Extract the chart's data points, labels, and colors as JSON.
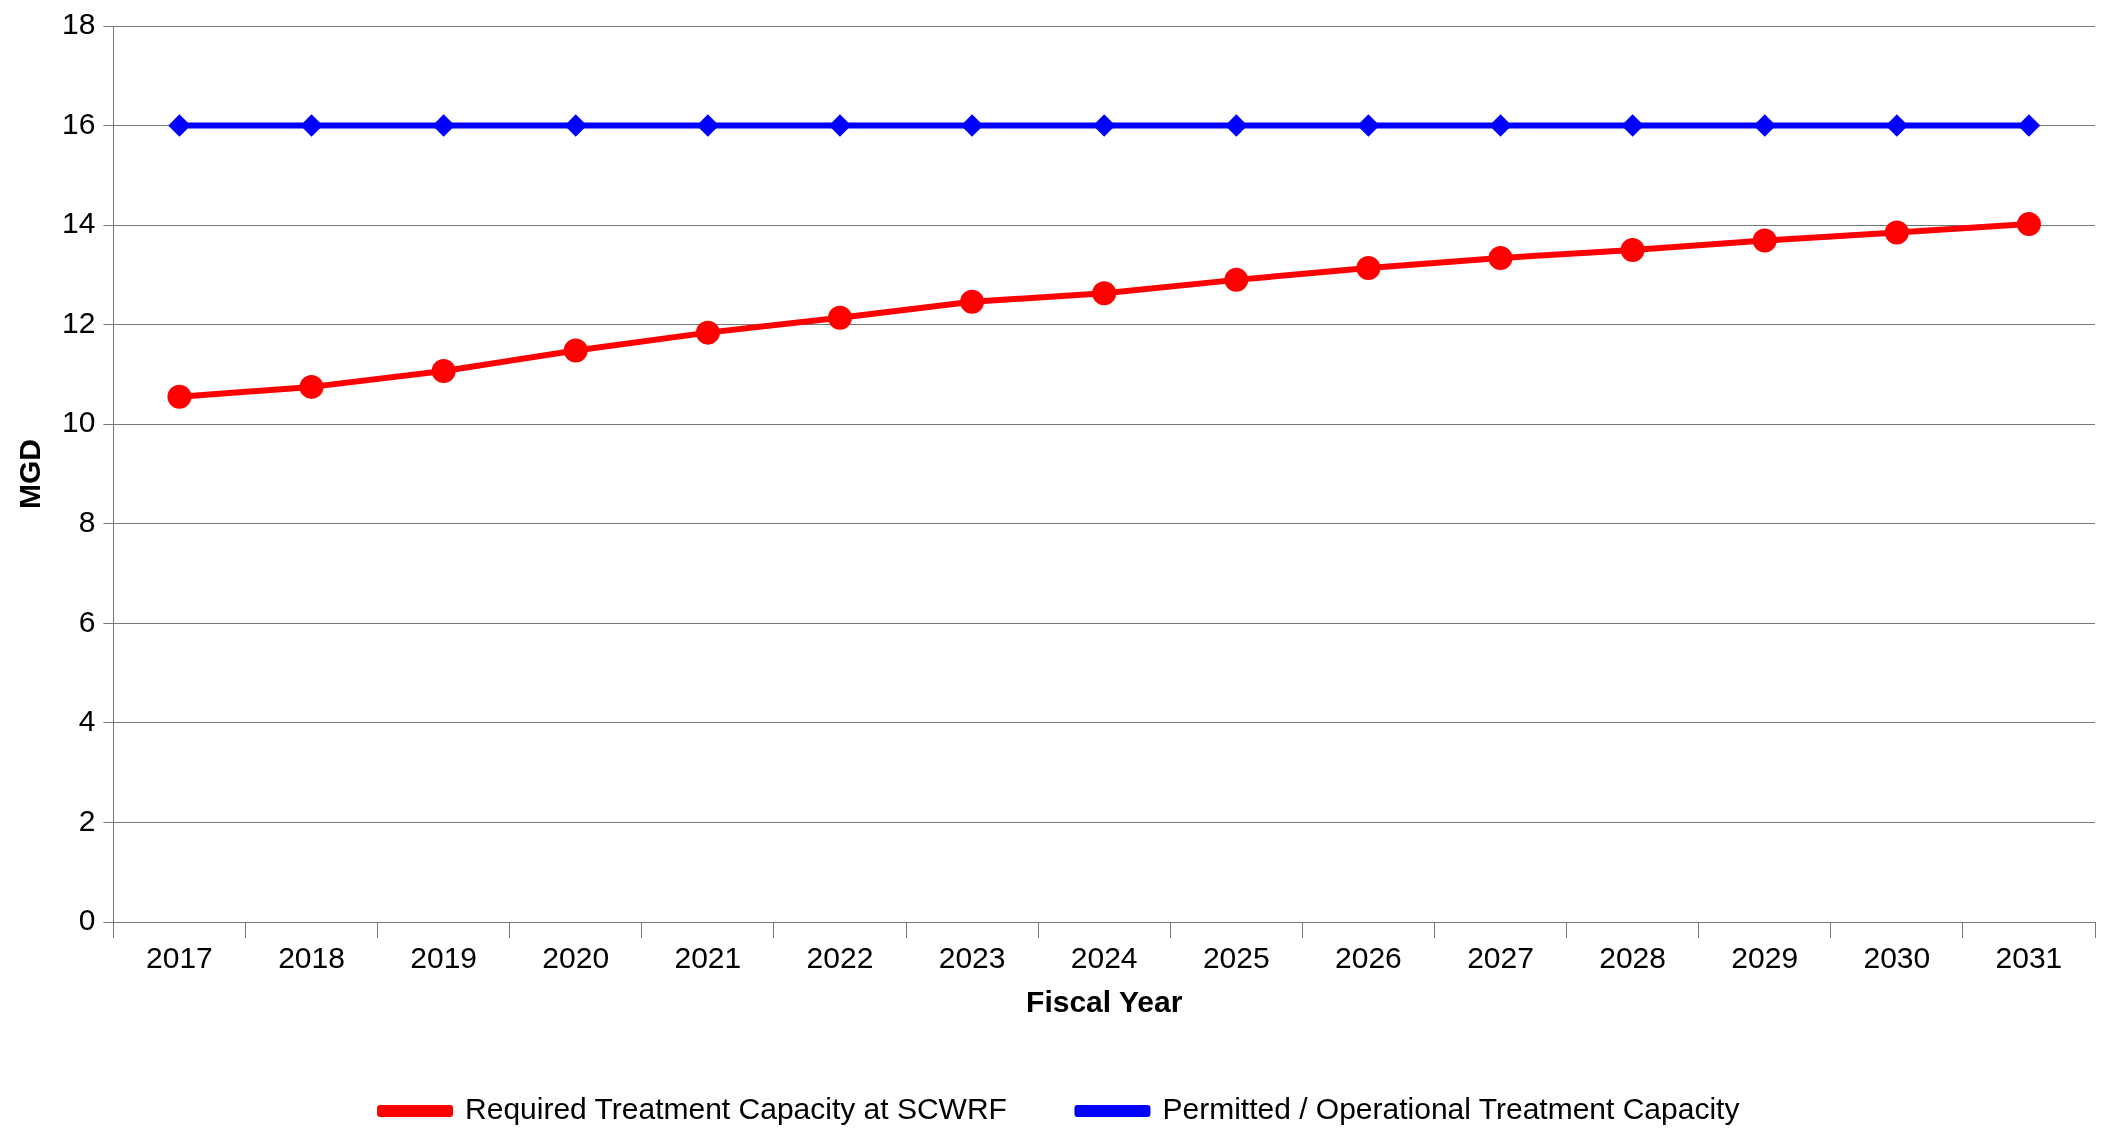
{
  "chart_data": {
    "type": "line",
    "xlabel": "Fiscal Year",
    "ylabel": "MGD",
    "categories": [
      "2017",
      "2018",
      "2019",
      "2020",
      "2021",
      "2022",
      "2023",
      "2024",
      "2025",
      "2026",
      "2027",
      "2028",
      "2029",
      "2030",
      "2031"
    ],
    "series": [
      {
        "name": "Required Treatment Capacity at SCWRF",
        "color": "#ff0000",
        "marker": "circle",
        "values": [
          10.55,
          10.75,
          11.07,
          11.48,
          11.84,
          12.14,
          12.46,
          12.63,
          12.9,
          13.14,
          13.34,
          13.5,
          13.69,
          13.85,
          14.02
        ]
      },
      {
        "name": "Permitted / Operational Treatment Capacity",
        "color": "#0000ff",
        "marker": "diamond",
        "values": [
          16,
          16,
          16,
          16,
          16,
          16,
          16,
          16,
          16,
          16,
          16,
          16,
          16,
          16,
          16
        ]
      }
    ],
    "ylim": [
      0,
      18
    ],
    "yticks": [
      0,
      2,
      4,
      6,
      8,
      10,
      12,
      14,
      16,
      18
    ],
    "grid": "y",
    "legend": "bottom"
  }
}
